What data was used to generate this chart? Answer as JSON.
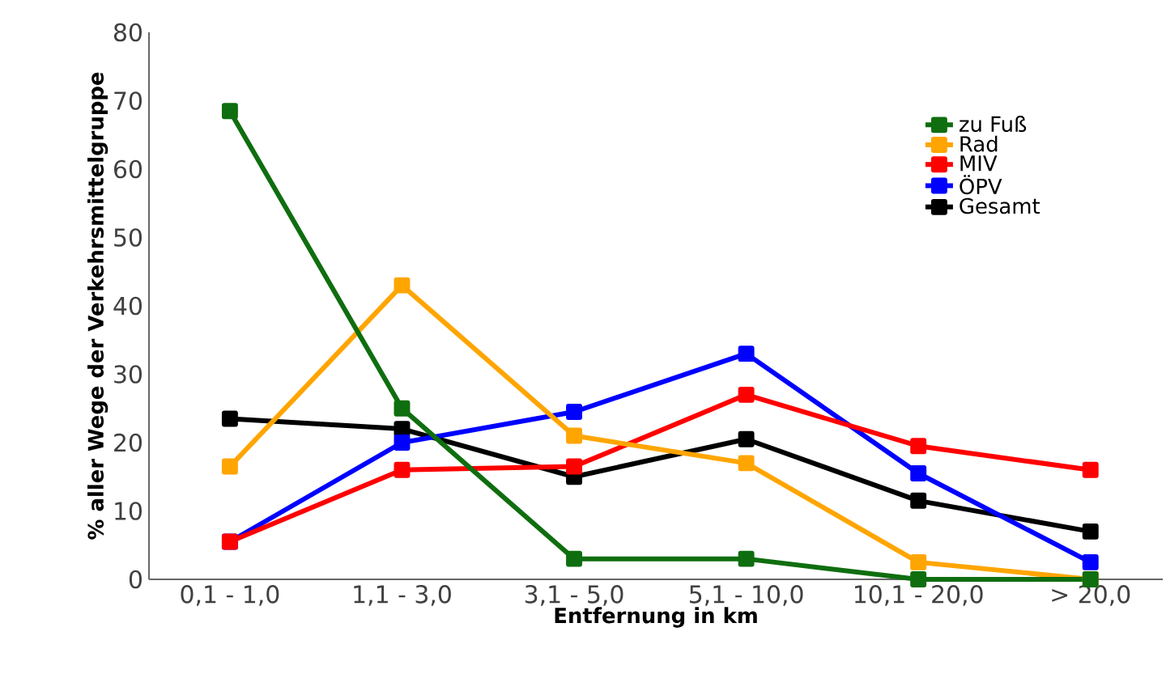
{
  "chart_data": {
    "type": "line",
    "xlabel": "Entfernung in km",
    "ylabel": "% aller Wege der Verkehrsmittelgruppe",
    "categories": [
      "0,1 - 1,0",
      "1,1 - 3,0",
      "3,1 - 5,0",
      "5,1 - 10,0",
      "10,1 - 20,0",
      "> 20,0"
    ],
    "series": [
      {
        "name": "zu Fuß",
        "color": "#0f6e0f",
        "values": [
          68.5,
          25,
          3,
          3,
          0,
          0
        ]
      },
      {
        "name": "Rad",
        "color": "#ffa500",
        "values": [
          16.5,
          43,
          21,
          17,
          2.5,
          0
        ]
      },
      {
        "name": "MIV",
        "color": "#ff0000",
        "values": [
          5.5,
          16,
          16.5,
          27,
          19.5,
          16
        ]
      },
      {
        "name": "ÖPV",
        "color": "#0000ff",
        "values": [
          5.5,
          20,
          24.5,
          33,
          15.5,
          2.5
        ]
      },
      {
        "name": "Gesamt",
        "color": "#000000",
        "values": [
          23.5,
          22,
          15,
          20.5,
          11.5,
          7
        ]
      }
    ],
    "ylim": [
      0,
      80
    ],
    "yticks": [
      0,
      10,
      20,
      30,
      40,
      50,
      60,
      70,
      80
    ],
    "grid": false,
    "legend": "top right",
    "marker": "square",
    "line_style": "solid"
  }
}
